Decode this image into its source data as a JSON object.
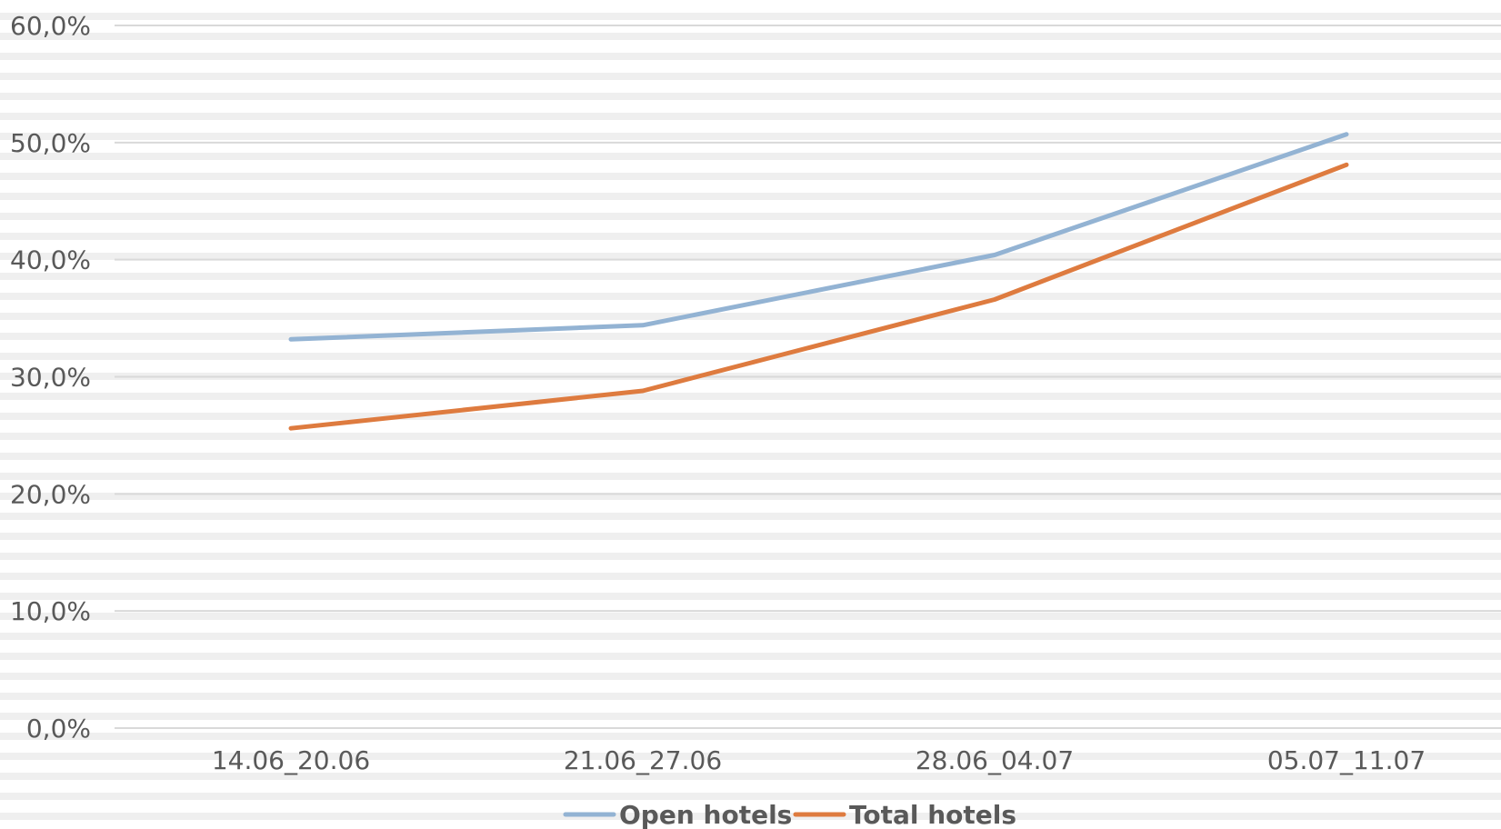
{
  "chart_data": {
    "type": "line",
    "title": "",
    "xlabel": "",
    "ylabel": "",
    "categories": [
      "14.06_20.06",
      "21.06_27.06",
      "28.06_04.07",
      "05.07_11.07"
    ],
    "series": [
      {
        "name": "Open hotels",
        "values": [
          33.2,
          34.4,
          40.4,
          50.7
        ],
        "color": "#93b3d3"
      },
      {
        "name": "Total hotels",
        "values": [
          25.6,
          28.8,
          36.6,
          48.1
        ],
        "color": "#de7b3f"
      }
    ],
    "ylim": [
      0,
      60
    ],
    "yticks": [
      "0,0%",
      "10,0%",
      "20,0%",
      "30,0%",
      "40,0%",
      "50,0%",
      "60,0%"
    ],
    "grid": true,
    "legend": "bottom",
    "gridline_color": "#d9d9d9",
    "text_color": "#595959"
  }
}
